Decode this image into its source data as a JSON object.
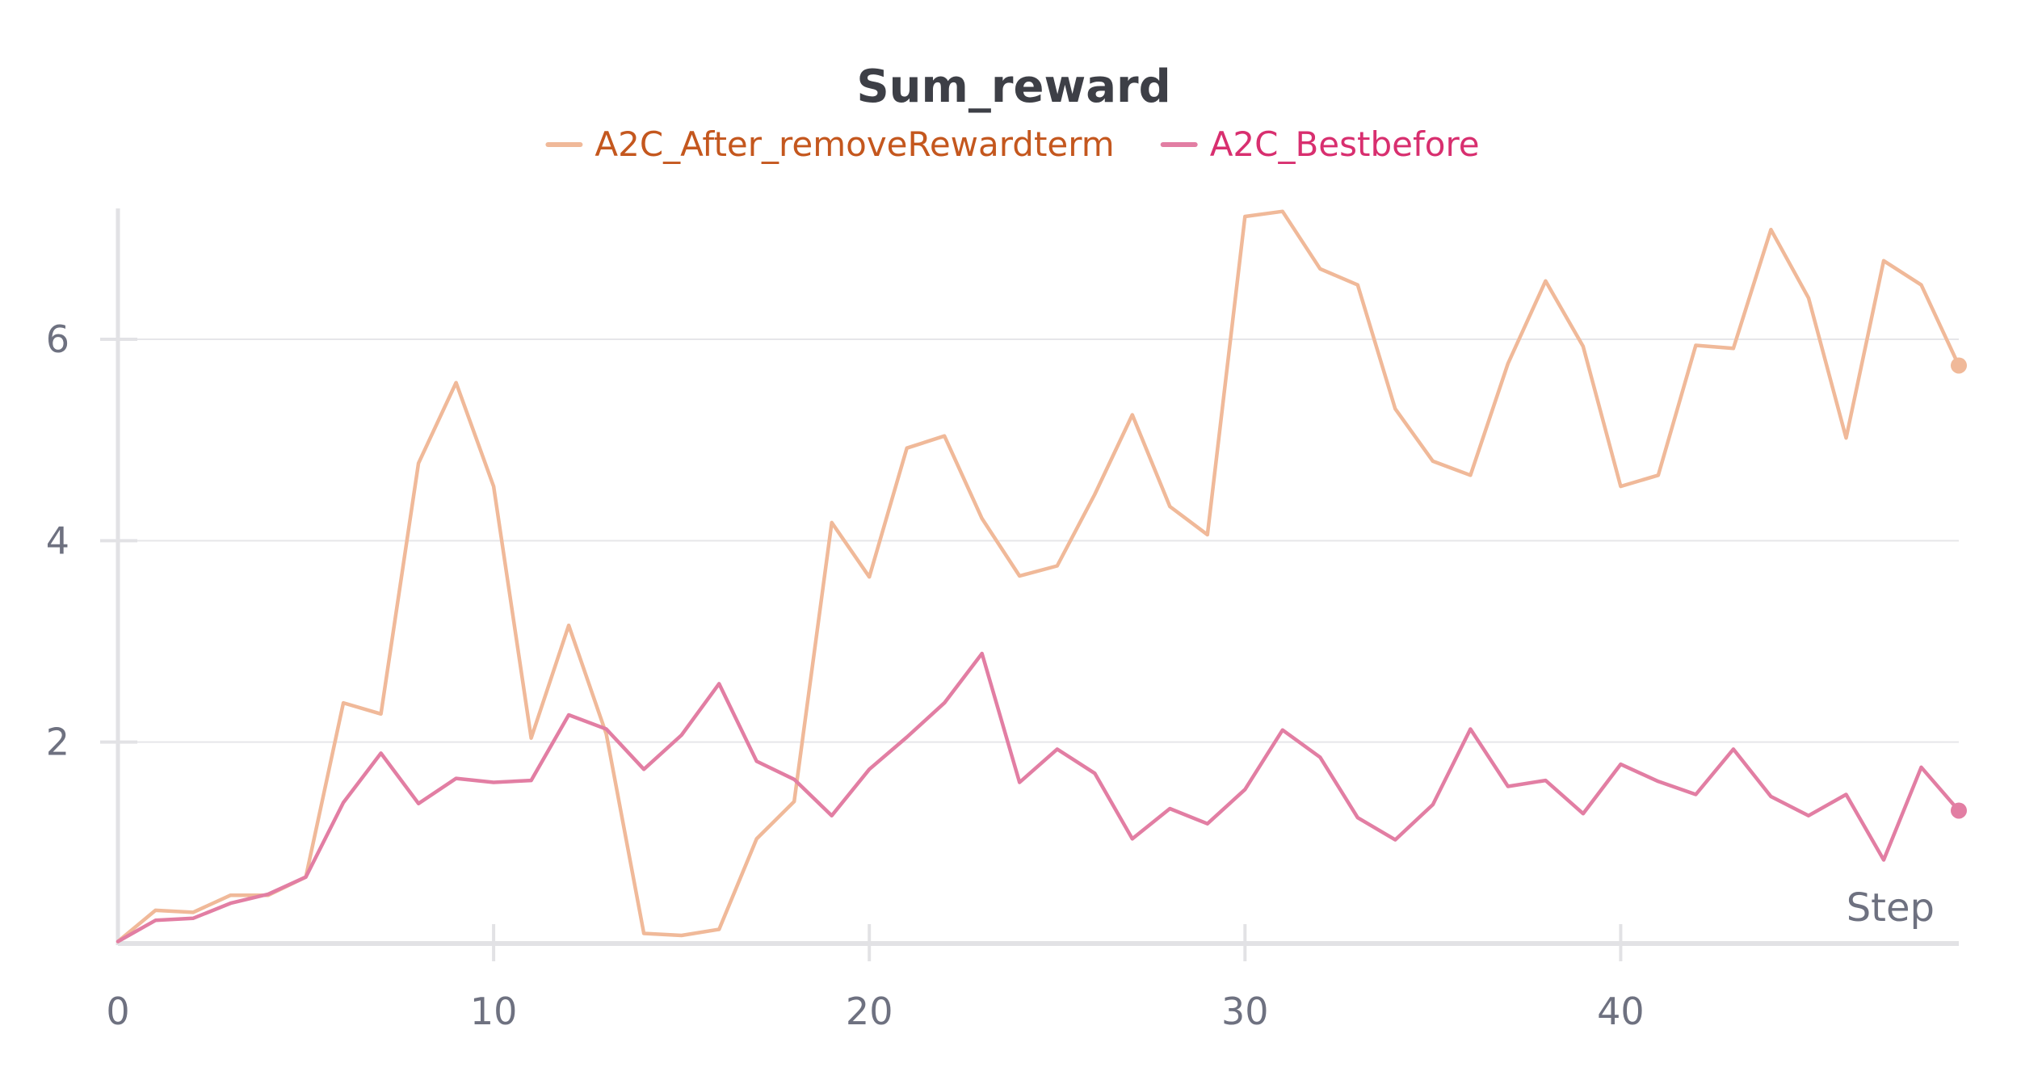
{
  "chart_data": {
    "type": "line",
    "title": "Sum_reward",
    "xlabel": "Step",
    "ylabel": "",
    "xlim": [
      0,
      49
    ],
    "ylim": [
      0,
      7.3
    ],
    "x_ticks": [
      0,
      10,
      20,
      30,
      40
    ],
    "x_tick_labels": [
      "0",
      "10",
      "20",
      "30",
      "40"
    ],
    "y_ticks": [
      2,
      4,
      6
    ],
    "y_tick_labels": [
      "2",
      "4",
      "6"
    ],
    "grid": "horizontal",
    "legend_position": "top-center",
    "x": [
      0,
      1,
      2,
      3,
      4,
      5,
      6,
      7,
      8,
      9,
      10,
      11,
      12,
      13,
      14,
      15,
      16,
      17,
      18,
      19,
      20,
      21,
      22,
      23,
      24,
      25,
      26,
      27,
      28,
      29,
      30,
      31,
      32,
      33,
      34,
      35,
      36,
      37,
      38,
      39,
      40,
      41,
      42,
      43,
      44,
      45,
      46,
      47,
      48,
      49
    ],
    "series": [
      {
        "name": "A2C_After_removeRewardterm",
        "color": "#f0b999",
        "label_color": "#c4571e",
        "values": [
          0.02,
          0.33,
          0.31,
          0.48,
          0.48,
          0.66,
          2.39,
          2.28,
          4.77,
          5.57,
          4.54,
          2.04,
          3.16,
          2.08,
          0.1,
          0.08,
          0.14,
          1.04,
          1.41,
          4.18,
          3.64,
          4.92,
          5.04,
          4.22,
          3.65,
          3.75,
          4.46,
          5.25,
          4.34,
          4.06,
          7.22,
          7.27,
          6.7,
          6.54,
          5.31,
          4.79,
          4.65,
          5.76,
          6.58,
          5.93,
          4.54,
          4.65,
          5.94,
          5.91,
          7.09,
          6.41,
          5.02,
          6.78,
          6.54,
          5.74
        ]
      },
      {
        "name": "A2C_Bestbefore",
        "color": "#e27ea3",
        "label_color": "#d82f6f",
        "values": [
          0.02,
          0.23,
          0.25,
          0.4,
          0.49,
          0.66,
          1.4,
          1.89,
          1.39,
          1.64,
          1.6,
          1.62,
          2.27,
          2.13,
          1.73,
          2.07,
          2.58,
          1.81,
          1.63,
          1.27,
          1.73,
          2.05,
          2.39,
          2.88,
          1.6,
          1.93,
          1.69,
          1.04,
          1.34,
          1.19,
          1.53,
          2.12,
          1.85,
          1.25,
          1.03,
          1.38,
          2.13,
          1.56,
          1.62,
          1.29,
          1.78,
          1.61,
          1.48,
          1.93,
          1.46,
          1.27,
          1.48,
          0.83,
          1.75,
          1.32
        ]
      }
    ]
  }
}
